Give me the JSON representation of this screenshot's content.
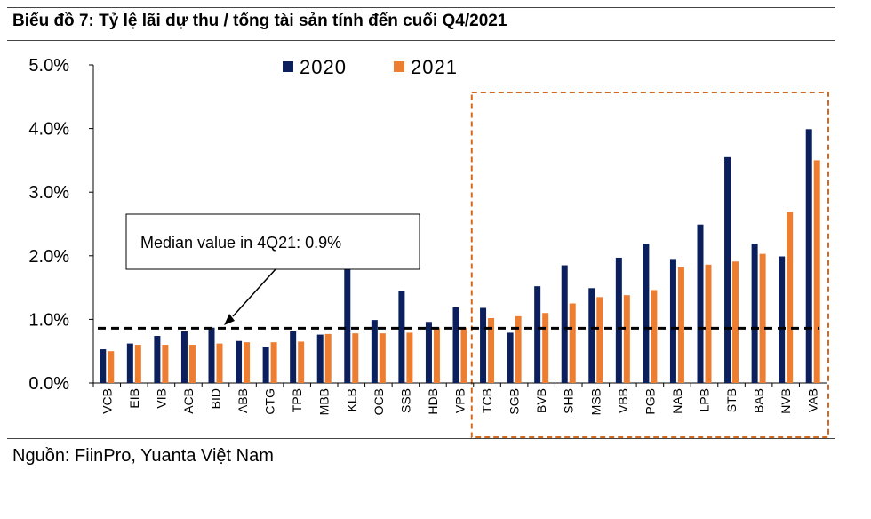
{
  "title": "Biểu đồ 7:  Tỷ lệ lãi dự thu / tổng tài sản tính đến cuối Q4/2021",
  "source": "Nguồn: FiinPro, Yuanta Việt Nam",
  "chart_data": {
    "type": "bar",
    "categories": [
      "VCB",
      "EIB",
      "VIB",
      "ACB",
      "BID",
      "ABB",
      "CTG",
      "TPB",
      "MBB",
      "KLB",
      "OCB",
      "SSB",
      "HDB",
      "VPB",
      "TCB",
      "SGB",
      "BVB",
      "SHB",
      "MSB",
      "VBB",
      "PGB",
      "NAB",
      "LPB",
      "STB",
      "BAB",
      "NVB",
      "VAB"
    ],
    "series": [
      {
        "name": "2020",
        "color": "#0a1f5c",
        "values": [
          0.53,
          0.62,
          0.74,
          0.81,
          0.87,
          0.66,
          0.57,
          0.81,
          0.76,
          1.95,
          0.99,
          1.44,
          0.96,
          1.19,
          1.18,
          0.79,
          1.52,
          1.85,
          1.49,
          1.97,
          2.19,
          1.95,
          2.49,
          3.55,
          2.19,
          1.99,
          3.99
        ]
      },
      {
        "name": "2021",
        "color": "#ed7d31",
        "values": [
          0.5,
          0.6,
          0.6,
          0.6,
          0.62,
          0.64,
          0.64,
          0.65,
          0.77,
          0.78,
          0.78,
          0.79,
          0.87,
          0.87,
          1.02,
          1.05,
          1.1,
          1.25,
          1.35,
          1.38,
          1.46,
          1.82,
          1.86,
          1.91,
          2.03,
          2.69,
          3.5
        ]
      }
    ],
    "yticks": [
      "0.0%",
      "1.0%",
      "2.0%",
      "3.0%",
      "4.0%",
      "5.0%"
    ],
    "ylim": [
      0,
      5
    ],
    "median": {
      "value": 0.86,
      "label": "Median value in 4Q21: 0.9%"
    },
    "highlight_range": [
      "TCB",
      "VAB"
    ],
    "legend_position": "top-center"
  }
}
